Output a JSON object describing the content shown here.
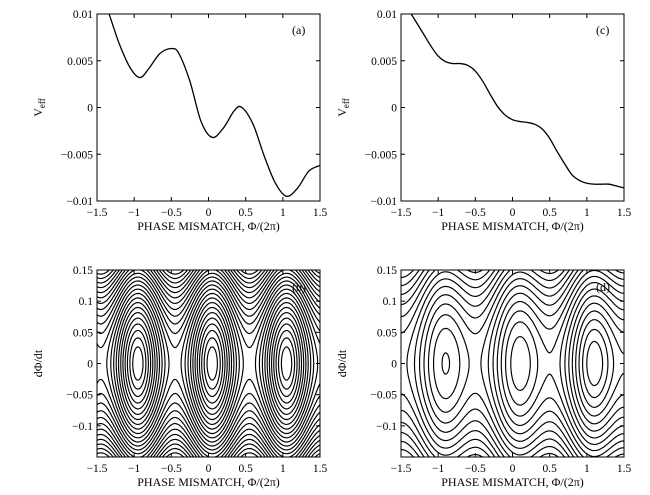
{
  "figure": {
    "panels": [
      "a",
      "b",
      "c",
      "d"
    ]
  },
  "chart_data": [
    {
      "id": "a",
      "type": "line",
      "panel_label": "(a)",
      "xlabel": "PHASE MISMATCH, Φ/(2π)",
      "ylabel_main": "V",
      "ylabel_sub": "eff",
      "xlim": [
        -1.5,
        1.5
      ],
      "ylim": [
        -0.01,
        0.01
      ],
      "xticks": [
        -1.5,
        -1,
        -0.5,
        0,
        0.5,
        1,
        1.5
      ],
      "xtick_labels": [
        "−1.5",
        "−1",
        "−0.5",
        "0",
        "0.5",
        "1",
        "1.5"
      ],
      "yticks": [
        -0.01,
        -0.005,
        0,
        0.005,
        0.01
      ],
      "ytick_labels": [
        "−0.01",
        "−0.005",
        "0",
        "0.005",
        "0.01"
      ],
      "series": [
        {
          "x": [
            -1.5,
            -1.35,
            -1.2,
            -1.05,
            -0.92,
            -0.8,
            -0.65,
            -0.5,
            -0.4,
            -0.25,
            -0.1,
            0.05,
            0.2,
            0.35,
            0.45,
            0.6,
            0.75,
            0.9,
            1.05,
            1.2,
            1.35,
            1.5
          ],
          "y": [
            0.0135,
            0.0103,
            0.0068,
            0.0042,
            0.0032,
            0.0042,
            0.0058,
            0.0063,
            0.0058,
            0.0028,
            -0.0015,
            -0.0032,
            -0.0022,
            -0.0003,
            0.0,
            -0.0018,
            -0.0052,
            -0.0081,
            -0.0095,
            -0.0086,
            -0.0068,
            -0.0062
          ]
        }
      ]
    },
    {
      "id": "b",
      "type": "contour",
      "panel_label": "(b)",
      "xlabel": "PHASE MISMATCH, Φ/(2π)",
      "ylabel": "dΦ/dt",
      "xlim": [
        -1.5,
        1.5
      ],
      "ylim": [
        -0.15,
        0.15
      ],
      "xticks": [
        -1.5,
        -1,
        -0.5,
        0,
        0.5,
        1,
        1.5
      ],
      "xtick_labels": [
        "−1.5",
        "−1",
        "−0.5",
        "0",
        "0.5",
        "1",
        "1.5"
      ],
      "yticks": [
        -0.1,
        -0.05,
        0,
        0.05,
        0.1,
        0.15
      ],
      "ytick_labels": [
        "−0.1",
        "−0.05",
        "0",
        "0.05",
        "0.1",
        "0.15"
      ],
      "potential": {
        "slope": 0.0,
        "amplitude": 0.0038,
        "centers": [
          -0.95,
          0.05,
          1.05
        ]
      }
    },
    {
      "id": "c",
      "type": "line",
      "panel_label": "(c)",
      "xlabel": "PHASE MISMATCH, Φ/(2π)",
      "ylabel_main": "V",
      "ylabel_sub": "eff",
      "xlim": [
        -1.5,
        1.5
      ],
      "ylim": [
        -0.01,
        0.01
      ],
      "xticks": [
        -1.5,
        -1,
        -0.5,
        0,
        0.5,
        1,
        1.5
      ],
      "xtick_labels": [
        "−1.5",
        "−1",
        "−0.5",
        "0",
        "0.5",
        "1",
        "1.5"
      ],
      "yticks": [
        -0.01,
        -0.005,
        0,
        0.005,
        0.01
      ],
      "ytick_labels": [
        "−0.01",
        "−0.005",
        "0",
        "0.005",
        "0.01"
      ],
      "series": [
        {
          "x": [
            -1.5,
            -1.4,
            -1.3,
            -1.2,
            -1.1,
            -1.0,
            -0.9,
            -0.8,
            -0.7,
            -0.6,
            -0.5,
            -0.4,
            -0.3,
            -0.2,
            -0.1,
            0.0,
            0.1,
            0.2,
            0.3,
            0.4,
            0.5,
            0.6,
            0.7,
            0.8,
            0.9,
            1.0,
            1.1,
            1.2,
            1.3,
            1.4,
            1.5
          ],
          "y": [
            0.0118,
            0.0105,
            0.0092,
            0.0079,
            0.0066,
            0.0055,
            0.0049,
            0.0047,
            0.0047,
            0.0045,
            0.0039,
            0.0028,
            0.0014,
            0.0001,
            -0.0008,
            -0.0013,
            -0.0015,
            -0.0016,
            -0.0018,
            -0.0023,
            -0.0033,
            -0.0047,
            -0.006,
            -0.0072,
            -0.0078,
            -0.0081,
            -0.0082,
            -0.0082,
            -0.0082,
            -0.0084,
            -0.0086
          ]
        }
      ]
    },
    {
      "id": "d",
      "type": "contour",
      "panel_label": "(d)",
      "xlabel": "PHASE MISMATCH, Φ/(2π)",
      "ylabel": "dΦ/dt",
      "xlim": [
        -1.5,
        1.5
      ],
      "ylim": [
        -0.15,
        0.15
      ],
      "xticks": [
        -1.5,
        -1,
        -0.5,
        0,
        0.5,
        1,
        1.5
      ],
      "xtick_labels": [
        "−1.5",
        "−1",
        "−0.5",
        "0",
        "0.5",
        "1",
        "1.5"
      ],
      "yticks": [
        -0.1,
        -0.05,
        0,
        0.05,
        0.1,
        0.15
      ],
      "ytick_labels": [
        "−0.1",
        "−0.05",
        "0",
        "0.05",
        "0.1",
        "0.15"
      ],
      "potential": {
        "slope": -0.0062,
        "amplitude": 0.0031,
        "centers": [
          -0.95,
          0.05,
          1.05
        ]
      }
    }
  ]
}
